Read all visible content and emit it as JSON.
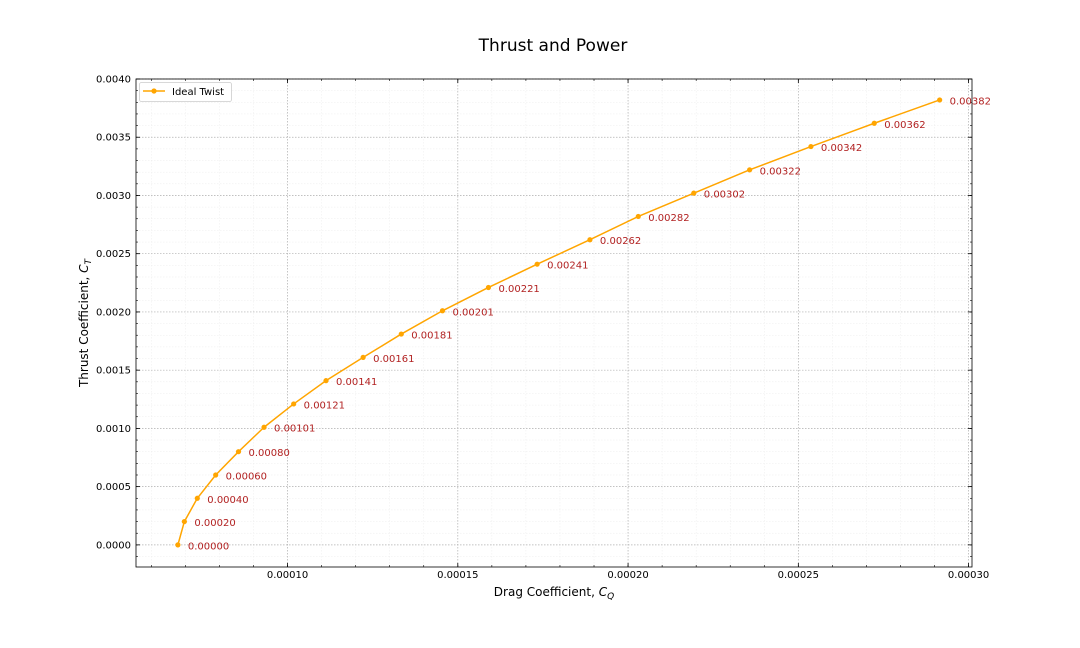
{
  "chart_data": {
    "type": "line",
    "title": "Thrust and Power",
    "xlabel": "Drag Coefficient, ",
    "xlabel_sym": "C",
    "xlabel_sub": "Q",
    "ylabel": "Thrust Coefficient, ",
    "ylabel_sym": "C",
    "ylabel_sub": "T",
    "xlim": [
      5.55e-05,
      0.000301
    ],
    "ylim": [
      -0.00019,
      0.004
    ],
    "x_ticks": [
      0.0001,
      0.00015,
      0.0002,
      0.00025,
      0.0003
    ],
    "x_tick_labels": [
      "0.00010",
      "0.00015",
      "0.00020",
      "0.00025",
      "0.00030"
    ],
    "y_ticks": [
      0.0,
      0.0005,
      0.001,
      0.0015,
      0.002,
      0.0025,
      0.003,
      0.0035,
      0.004
    ],
    "y_tick_labels": [
      "0.0000",
      "0.0005",
      "0.0010",
      "0.0015",
      "0.0020",
      "0.0025",
      "0.0030",
      "0.0035",
      "0.0040"
    ],
    "grid": true,
    "legend_position": "top-left",
    "series": [
      {
        "name": "Ideal Twist",
        "color": "#ffa500",
        "label_color": "#b22222",
        "x": [
          6.78e-05,
          6.97e-05,
          7.35e-05,
          7.89e-05,
          8.56e-05,
          9.31e-05,
          0.0001018,
          0.0001113,
          0.0001222,
          0.0001334,
          0.0001455,
          0.000159,
          0.0001733,
          0.0001888,
          0.000203,
          0.0002193,
          0.0002357,
          0.0002537,
          0.0002723,
          0.0002915
        ],
        "y": [
          0.0,
          0.0002,
          0.0004,
          0.0006,
          0.0008,
          0.00101,
          0.00121,
          0.00141,
          0.00161,
          0.00181,
          0.00201,
          0.00221,
          0.00241,
          0.00262,
          0.00282,
          0.00302,
          0.00322,
          0.00342,
          0.00362,
          0.00382
        ],
        "labels": [
          "0.00000",
          "0.00020",
          "0.00040",
          "0.00060",
          "0.00080",
          "0.00101",
          "0.00121",
          "0.00141",
          "0.00161",
          "0.00181",
          "0.00201",
          "0.00221",
          "0.00241",
          "0.00262",
          "0.00282",
          "0.00302",
          "0.00322",
          "0.00342",
          "0.00362",
          "0.00382"
        ]
      }
    ]
  }
}
